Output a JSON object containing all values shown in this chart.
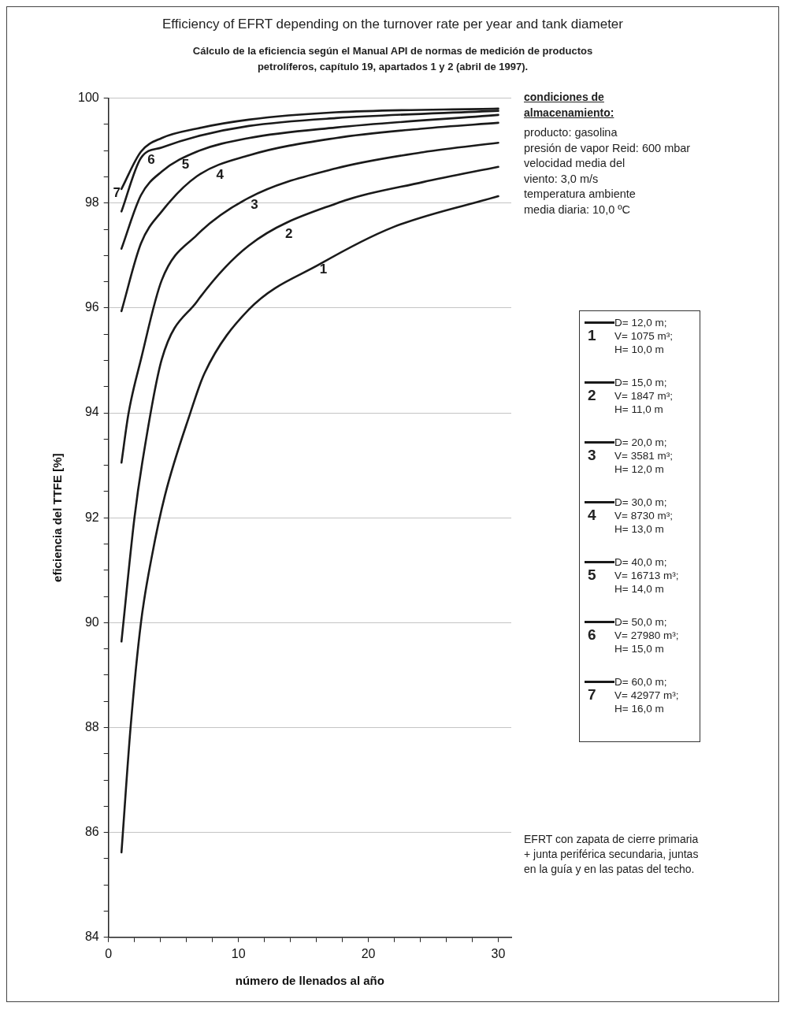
{
  "chart_data": {
    "type": "line",
    "title": "Efficiency of EFRT depending on the turnover rate per year and tank diameter",
    "subtitle": "Cálculo de la eficiencia según el Manual API de normas de medición de productos\npetrolíferos, capítulo 19, apartados 1 y 2 (abril de 1997).",
    "xlabel": "número de llenados al año",
    "ylabel": "eficiencia del TTFE [%]",
    "xlim": [
      0,
      31
    ],
    "ylim": [
      84,
      100
    ],
    "xticks": [
      0,
      {
        "value": 2,
        "label": null
      },
      {
        "value": 4,
        "label": null
      },
      {
        "value": 6,
        "label": null
      },
      {
        "value": 8,
        "label": null
      },
      10,
      {
        "value": 12,
        "label": null
      },
      {
        "value": 14,
        "label": null
      },
      {
        "value": 16,
        "label": null
      },
      {
        "value": 18,
        "label": null
      },
      20,
      {
        "value": 22,
        "label": null
      },
      {
        "value": 24,
        "label": null
      },
      {
        "value": 26,
        "label": null
      },
      {
        "value": 28,
        "label": null
      },
      30
    ],
    "yticks": [
      84,
      {
        "value": 84.5,
        "label": null
      },
      {
        "value": 85,
        "label": null
      },
      {
        "value": 85.5,
        "label": null
      },
      86,
      {
        "value": 86.5,
        "label": null
      },
      {
        "value": 87,
        "label": null
      },
      {
        "value": 87.5,
        "label": null
      },
      88,
      {
        "value": 88.5,
        "label": null
      },
      {
        "value": 89,
        "label": null
      },
      {
        "value": 89.5,
        "label": null
      },
      90,
      {
        "value": 90.5,
        "label": null
      },
      {
        "value": 91,
        "label": null
      },
      {
        "value": 91.5,
        "label": null
      },
      92,
      {
        "value": 92.5,
        "label": null
      },
      {
        "value": 93,
        "label": null
      },
      {
        "value": 93.5,
        "label": null
      },
      94,
      {
        "value": 94.5,
        "label": null
      },
      {
        "value": 95,
        "label": null
      },
      {
        "value": 95.5,
        "label": null
      },
      96,
      {
        "value": 96.5,
        "label": null
      },
      {
        "value": 97,
        "label": null
      },
      {
        "value": 97.5,
        "label": null
      },
      98,
      {
        "value": 98.5,
        "label": null
      },
      {
        "value": 99,
        "label": null
      },
      {
        "value": 99.5,
        "label": null
      },
      100
    ],
    "grid": "y",
    "legend": "right",
    "marker": "none",
    "line_style": "solid",
    "series": [
      {
        "name": "1",
        "color": "#1a1a1a",
        "x": [
          1,
          1.7,
          2.5,
          3.35,
          4.35,
          6.3,
          7.4,
          10.8,
          16.3,
          21.9,
          30
        ],
        "values": [
          85.62,
          88.0,
          90.0,
          91.28,
          92.43,
          94.0,
          94.76,
          95.97,
          96.84,
          97.54,
          98.13
        ]
      },
      {
        "name": "2",
        "color": "#1a1a1a",
        "x": [
          1,
          2.0,
          2.6,
          4.1,
          6.8,
          10.8,
          17.5,
          24.2,
          30
        ],
        "values": [
          89.64,
          92.0,
          93.05,
          95.02,
          96.12,
          97.19,
          97.99,
          98.4,
          98.69
        ]
      },
      {
        "name": "3",
        "color": "#1a1a1a",
        "x": [
          1,
          1.55,
          2.5,
          4.1,
          6.8,
          10.8,
          17.5,
          24.2,
          30
        ],
        "values": [
          93.05,
          94.0,
          95.02,
          96.53,
          97.39,
          98.1,
          98.66,
          98.97,
          99.15
        ]
      },
      {
        "name": "4",
        "color": "#1a1a1a",
        "x": [
          1,
          2.5,
          4.1,
          6.8,
          10.8,
          17.5,
          24.2,
          30
        ],
        "values": [
          95.94,
          97.23,
          97.84,
          98.51,
          98.91,
          99.24,
          99.42,
          99.53
        ]
      },
      {
        "name": "5",
        "color": "#1a1a1a",
        "x": [
          1,
          2.5,
          4.1,
          6.8,
          10.8,
          17.5,
          30
        ],
        "values": [
          97.13,
          98.15,
          98.6,
          98.98,
          99.24,
          99.44,
          99.68
        ]
      },
      {
        "name": "6",
        "color": "#1a1a1a",
        "x": [
          1,
          2.5,
          4.1,
          6.8,
          10.8,
          17.5,
          30
        ],
        "values": [
          97.84,
          98.86,
          99.06,
          99.27,
          99.47,
          99.62,
          99.76
        ]
      },
      {
        "name": "7",
        "color": "#1a1a1a",
        "x": [
          1,
          2.5,
          4.1,
          6.8,
          10.8,
          17.5,
          30
        ],
        "values": [
          98.27,
          98.98,
          99.24,
          99.42,
          99.59,
          99.73,
          99.8
        ]
      }
    ],
    "annotations": [
      "condiciones de\nalmacenamiento:",
      "producto: gasolina\npresión de vapor Reid: 600 mbar\nvelocidad media del\nviento: 3,0 m/s\ntemperatura ambiente\nmedia diaria: 10,0 ºC",
      "D= 12,0 m;\nV= 1075 m³;\nH= 10,0 m",
      "D= 15,0 m;\nV= 1847 m³;\nH= 11,0 m",
      "D= 20,0 m;\nV= 3581 m³;\nH= 12,0 m",
      "D= 30,0 m;\nV= 8730 m³;\nH= 13,0 m",
      "D= 40,0 m;\nV= 16713 m³;\nH= 14,0 m",
      "D= 50,0 m;\nV= 27980 m³;\nH= 15,0 m",
      "D= 60,0 m;\nV= 42977 m³;\nH= 16,0 m",
      "EFRT con zapata de cierre primaria\n+ junta periférica secundaria, juntas\nen la guía y en las patas del techo."
    ]
  }
}
